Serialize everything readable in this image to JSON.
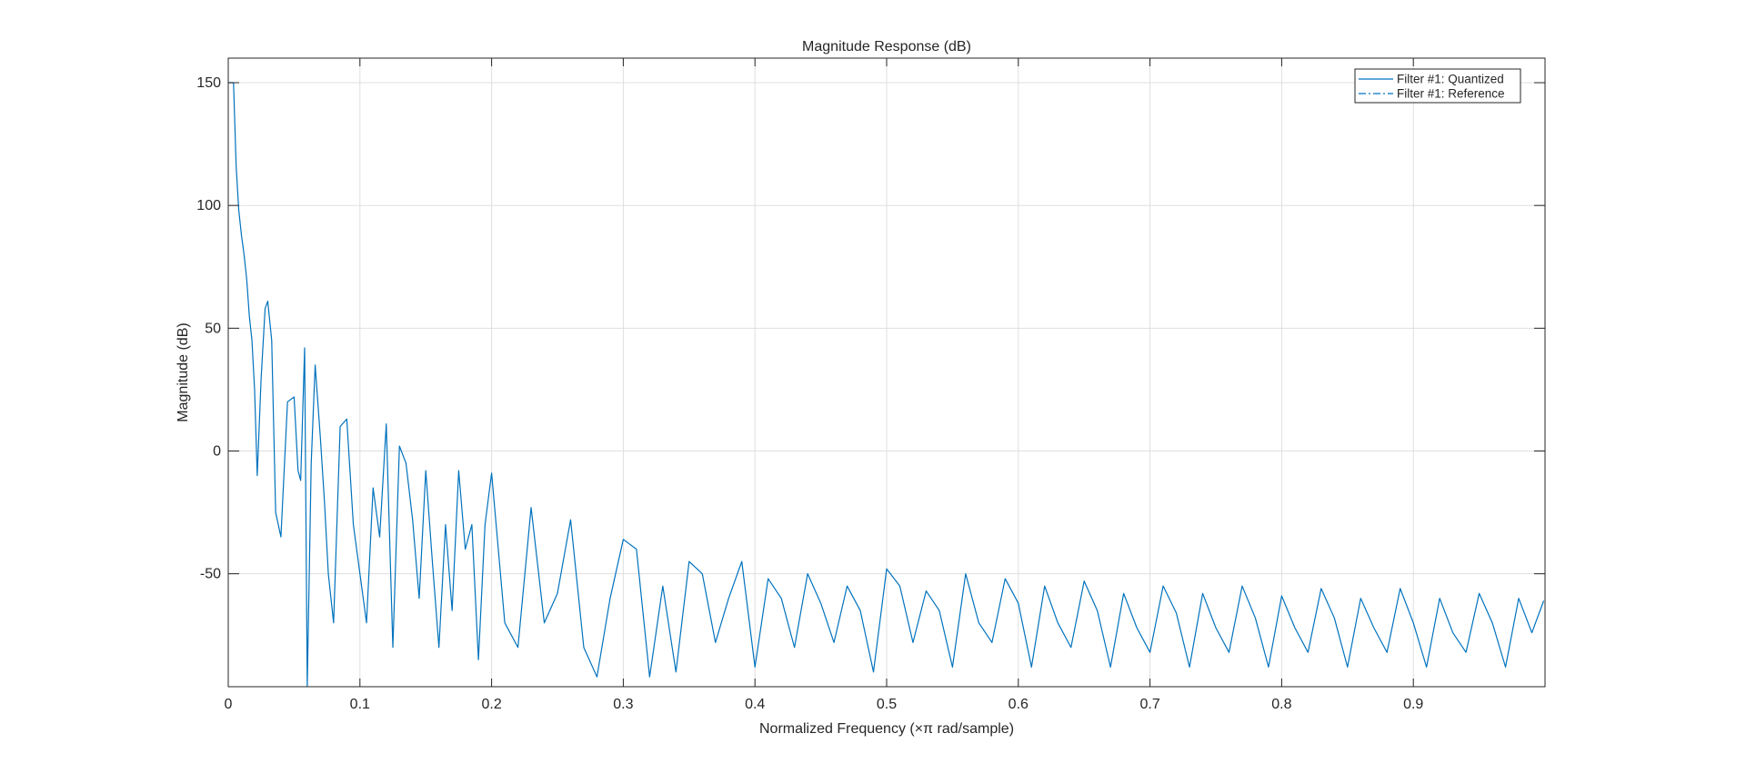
{
  "chart_data": {
    "type": "line",
    "title": "Magnitude Response (dB)",
    "xlabel": "Normalized Frequency (×π rad/sample)",
    "ylabel": "Magnitude (dB)",
    "xlim": [
      0,
      1
    ],
    "ylim": [
      -96,
      160
    ],
    "xticks": [
      0,
      0.1,
      0.2,
      0.3,
      0.4,
      0.5,
      0.6,
      0.7,
      0.8,
      0.9
    ],
    "xtick_labels": [
      "0",
      "0.1",
      "0.2",
      "0.3",
      "0.4",
      "0.5",
      "0.6",
      "0.7",
      "0.8",
      "0.9"
    ],
    "yticks": [
      -50,
      0,
      50,
      100,
      150
    ],
    "ytick_labels": [
      "-50",
      "0",
      "50",
      "100",
      "150"
    ],
    "grid": true,
    "legend_position": "top-right",
    "line_color": "#0072BD",
    "series": [
      {
        "name": "Filter #1: Quantized",
        "style": "solid",
        "x": [
          0.0,
          0.004,
          0.006,
          0.008,
          0.01,
          0.012,
          0.014,
          0.016,
          0.018,
          0.02,
          0.022,
          0.025,
          0.028,
          0.03,
          0.033,
          0.036,
          0.04,
          0.045,
          0.05,
          0.053,
          0.055,
          0.058,
          0.06,
          0.063,
          0.066,
          0.07,
          0.073,
          0.076,
          0.08,
          0.085,
          0.09,
          0.095,
          0.1,
          0.105,
          0.11,
          0.115,
          0.12,
          0.125,
          0.13,
          0.135,
          0.14,
          0.145,
          0.15,
          0.155,
          0.16,
          0.165,
          0.17,
          0.175,
          0.18,
          0.185,
          0.19,
          0.195,
          0.2,
          0.21,
          0.22,
          0.23,
          0.24,
          0.25,
          0.26,
          0.27,
          0.28,
          0.29,
          0.3,
          0.31,
          0.32,
          0.33,
          0.34,
          0.35,
          0.36,
          0.37,
          0.38,
          0.39,
          0.4,
          0.41,
          0.42,
          0.43,
          0.44,
          0.45,
          0.46,
          0.47,
          0.48,
          0.49,
          0.5,
          0.51,
          0.52,
          0.53,
          0.54,
          0.55,
          0.56,
          0.57,
          0.58,
          0.59,
          0.6,
          0.61,
          0.62,
          0.63,
          0.64,
          0.65,
          0.66,
          0.67,
          0.68,
          0.69,
          0.7,
          0.71,
          0.72,
          0.73,
          0.74,
          0.75,
          0.76,
          0.77,
          0.78,
          0.79,
          0.8,
          0.81,
          0.82,
          0.83,
          0.84,
          0.85,
          0.86,
          0.87,
          0.88,
          0.89,
          0.9,
          0.91,
          0.92,
          0.93,
          0.94,
          0.95,
          0.96,
          0.97,
          0.98,
          0.99,
          0.999
        ],
        "y": [
          150,
          150,
          116,
          98,
          88,
          80,
          70,
          55,
          45,
          25,
          -10,
          30,
          58,
          61,
          45,
          -25,
          -35,
          20,
          22,
          -8,
          -12,
          42,
          -96,
          -5,
          35,
          5,
          -20,
          -50,
          -70,
          10,
          13,
          -30,
          -50,
          -70,
          -15,
          -35,
          11,
          -80,
          2,
          -5,
          -28,
          -60,
          -8,
          -45,
          -80,
          -30,
          -65,
          -8,
          -40,
          -30,
          -85,
          -30,
          -9,
          -70,
          -80,
          -23,
          -70,
          -58,
          -28,
          -80,
          -92,
          -60,
          -36,
          -40,
          -92,
          -55,
          -90,
          -45,
          -50,
          -78,
          -60,
          -45,
          -88,
          -52,
          -60,
          -80,
          -50,
          -62,
          -78,
          -55,
          -65,
          -90,
          -48,
          -55,
          -78,
          -57,
          -65,
          -88,
          -50,
          -70,
          -78,
          -52,
          -62,
          -88,
          -55,
          -70,
          -80,
          -53,
          -65,
          -88,
          -58,
          -72,
          -82,
          -55,
          -66,
          -88,
          -58,
          -72,
          -82,
          -55,
          -68,
          -88,
          -59,
          -72,
          -82,
          -56,
          -68,
          -88,
          -60,
          -72,
          -82,
          -56,
          -70,
          -88,
          -60,
          -74,
          -82,
          -58,
          -70,
          -88,
          -60,
          -74,
          -61
        ]
      },
      {
        "name": "Filter #1: Reference",
        "style": "dashdot"
      }
    ]
  }
}
